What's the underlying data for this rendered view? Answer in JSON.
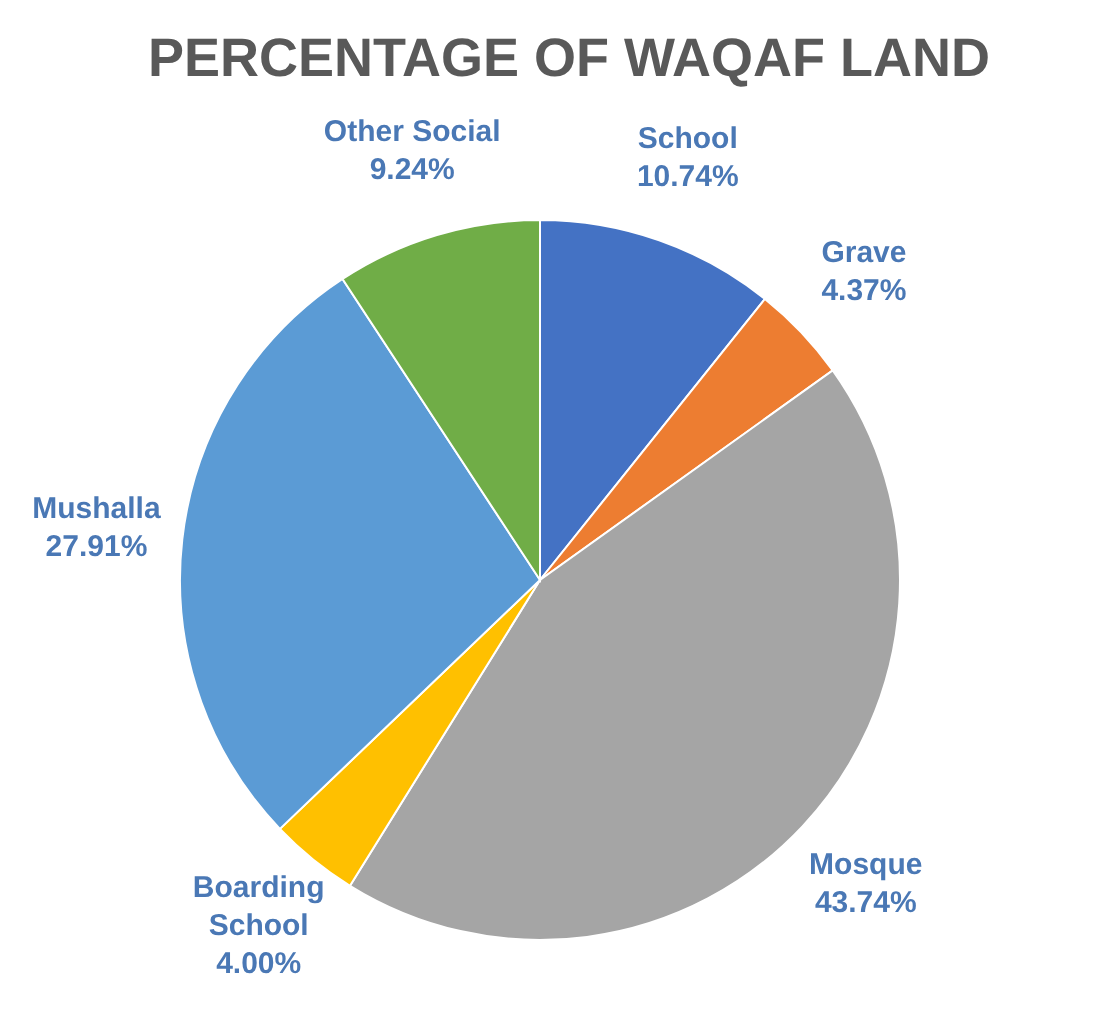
{
  "chart_data": {
    "type": "pie",
    "title": "PERCENTAGE OF WAQAF LAND",
    "categories": [
      "School",
      "Grave",
      "Mosque",
      "Boarding School",
      "Mushalla",
      "Other Social"
    ],
    "values": [
      10.74,
      4.37,
      43.74,
      4.0,
      27.91,
      9.24
    ],
    "value_labels": [
      "10.74%",
      "4.37%",
      "43.74%",
      "4.00%",
      "27.91%",
      "9.24%"
    ],
    "colors": [
      "#4472c4",
      "#ed7d31",
      "#a5a5a5",
      "#ffc000",
      "#5b9bd5",
      "#70ad47"
    ]
  }
}
